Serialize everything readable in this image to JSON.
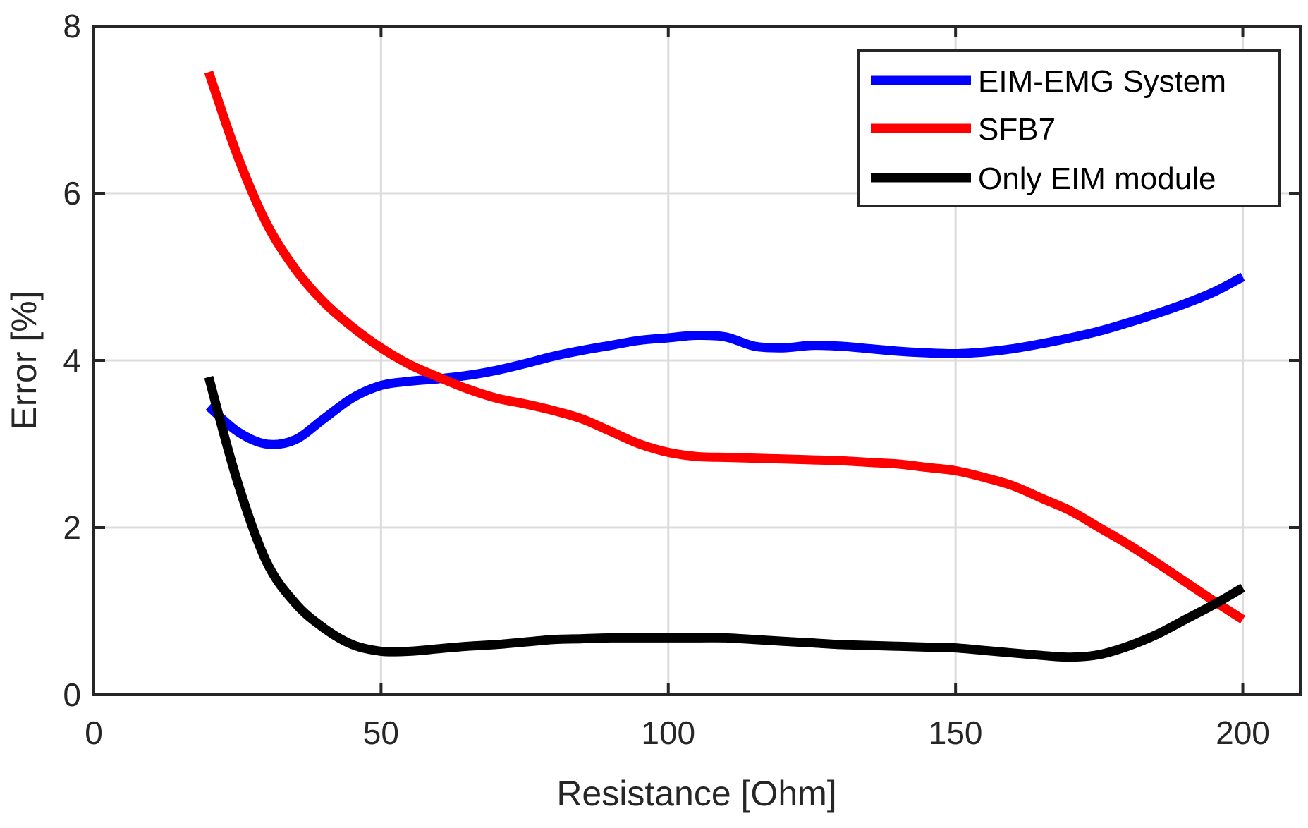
{
  "chart_data": {
    "type": "line",
    "title": "",
    "xlabel": "Resistance [Ohm]",
    "ylabel": "Error [%]",
    "xlim": [
      0,
      210
    ],
    "ylim": [
      0,
      8
    ],
    "xticks": [
      "0",
      "50",
      "100",
      "150",
      "200"
    ],
    "yticks": [
      "0",
      "2",
      "4",
      "6",
      "8"
    ],
    "grid": true,
    "legend_position": "top-right",
    "series": [
      {
        "name": "EIM-EMG System",
        "color": "#0000ff",
        "x": [
          20,
          25,
          30,
          35,
          40,
          45,
          50,
          55,
          60,
          65,
          70,
          75,
          80,
          85,
          90,
          95,
          100,
          105,
          110,
          115,
          120,
          125,
          130,
          135,
          140,
          145,
          150,
          155,
          160,
          165,
          170,
          175,
          180,
          185,
          190,
          195,
          200
        ],
        "values": [
          3.45,
          3.15,
          3.0,
          3.05,
          3.3,
          3.55,
          3.7,
          3.75,
          3.78,
          3.82,
          3.88,
          3.96,
          4.05,
          4.12,
          4.18,
          4.24,
          4.27,
          4.3,
          4.28,
          4.17,
          4.15,
          4.18,
          4.17,
          4.14,
          4.11,
          4.09,
          4.08,
          4.1,
          4.14,
          4.2,
          4.27,
          4.35,
          4.45,
          4.56,
          4.68,
          4.82,
          5.0
        ]
      },
      {
        "name": "SFB7",
        "color": "#ff0000",
        "x": [
          20,
          25,
          30,
          35,
          40,
          45,
          50,
          55,
          60,
          65,
          70,
          75,
          80,
          85,
          90,
          95,
          100,
          105,
          110,
          115,
          120,
          125,
          130,
          135,
          140,
          145,
          150,
          155,
          160,
          165,
          170,
          175,
          180,
          185,
          190,
          195,
          200
        ],
        "values": [
          7.45,
          6.45,
          5.65,
          5.1,
          4.7,
          4.4,
          4.15,
          3.95,
          3.8,
          3.66,
          3.55,
          3.48,
          3.4,
          3.3,
          3.15,
          3.0,
          2.9,
          2.85,
          2.84,
          2.83,
          2.82,
          2.81,
          2.8,
          2.78,
          2.76,
          2.72,
          2.68,
          2.6,
          2.5,
          2.35,
          2.2,
          2.0,
          1.8,
          1.58,
          1.35,
          1.12,
          0.9
        ]
      },
      {
        "name": "Only EIM module",
        "color": "#000000",
        "x": [
          20,
          25,
          30,
          35,
          40,
          45,
          50,
          55,
          60,
          65,
          70,
          75,
          80,
          85,
          90,
          95,
          100,
          105,
          110,
          115,
          120,
          125,
          130,
          135,
          140,
          145,
          150,
          155,
          160,
          165,
          170,
          175,
          180,
          185,
          190,
          195,
          200
        ],
        "values": [
          3.8,
          2.55,
          1.6,
          1.1,
          0.8,
          0.6,
          0.52,
          0.52,
          0.55,
          0.58,
          0.6,
          0.63,
          0.66,
          0.67,
          0.68,
          0.68,
          0.68,
          0.68,
          0.68,
          0.66,
          0.64,
          0.62,
          0.6,
          0.59,
          0.58,
          0.57,
          0.56,
          0.53,
          0.5,
          0.47,
          0.45,
          0.48,
          0.58,
          0.72,
          0.9,
          1.08,
          1.28
        ]
      }
    ]
  }
}
